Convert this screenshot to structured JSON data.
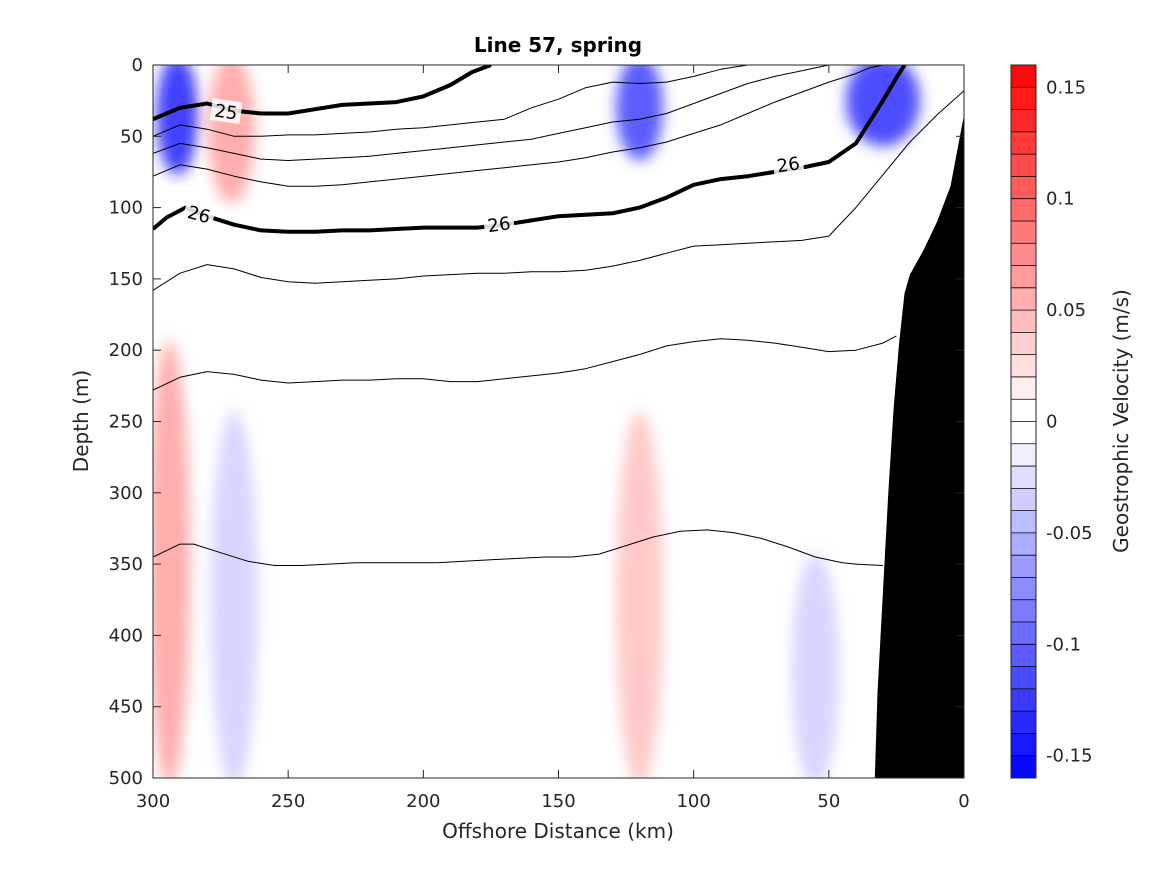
{
  "chart_data": {
    "type": "contour",
    "title": "Line 57, spring",
    "xlabel": "Offshore Distance (km)",
    "ylabel": "Depth (m)",
    "x_reversed": true,
    "y_reversed": true,
    "xlim": [
      0,
      300
    ],
    "ylim": [
      0,
      500
    ],
    "x_ticks": [
      "300",
      "250",
      "200",
      "150",
      "100",
      "50",
      "0"
    ],
    "x_tick_values": [
      300,
      250,
      200,
      150,
      100,
      50,
      0
    ],
    "y_ticks": [
      "0",
      "50",
      "100",
      "150",
      "200",
      "250",
      "300",
      "350",
      "400",
      "450",
      "500"
    ],
    "y_tick_values": [
      0,
      50,
      100,
      150,
      200,
      250,
      300,
      350,
      400,
      450,
      500
    ],
    "colorbar": {
      "label": "Geostrophic Velocity (m/s)",
      "range": [
        -0.16,
        0.16
      ],
      "levels": 32,
      "tick_labels": [
        "0.15",
        "0.1",
        "0.05",
        "0",
        "-0.05",
        "-0.1",
        "-0.15"
      ],
      "tick_values": [
        0.15,
        0.1,
        0.05,
        0,
        -0.05,
        -0.1,
        -0.15
      ],
      "positive_color": "#ff0000",
      "negative_color": "#0000ff"
    },
    "velocity_features": [
      {
        "x": [
          295,
          287
        ],
        "z": [
          0,
          70
        ],
        "v": -0.14
      },
      {
        "x": [
          276,
          266
        ],
        "z": [
          0,
          90
        ],
        "v": 0.06
      },
      {
        "x": [
          125,
          115
        ],
        "z": [
          0,
          60
        ],
        "v": -0.12
      },
      {
        "x": [
          40,
          20
        ],
        "z": [
          0,
          50
        ],
        "v": -0.13
      },
      {
        "x": [
          298,
          290
        ],
        "z": [
          200,
          500
        ],
        "v": 0.06
      },
      {
        "x": [
          275,
          265
        ],
        "z": [
          250,
          500
        ],
        "v": -0.03
      },
      {
        "x": [
          125,
          115
        ],
        "z": [
          250,
          500
        ],
        "v": 0.04
      },
      {
        "x": [
          60,
          50
        ],
        "z": [
          350,
          500
        ],
        "v": -0.03
      }
    ],
    "density_contours": [
      {
        "label": "25",
        "bold": true,
        "x": [
          300,
          290,
          280,
          270,
          260,
          250,
          240,
          230,
          220,
          210,
          200,
          190,
          182,
          175
        ],
        "z": [
          38,
          30,
          27,
          32,
          34,
          34,
          31,
          28,
          27,
          26,
          22,
          14,
          5,
          0
        ]
      },
      {
        "label": "",
        "bold": false,
        "x": [
          300,
          290,
          280,
          270,
          260,
          250,
          240,
          230,
          220,
          210,
          200,
          190,
          180,
          170,
          160,
          150,
          140,
          130,
          120,
          110,
          100,
          90,
          80,
          70,
          60,
          50
        ],
        "z": [
          50,
          42,
          45,
          50,
          50,
          49,
          49,
          48,
          47,
          45,
          44,
          42,
          40,
          38,
          30,
          24,
          16,
          12,
          13,
          12,
          8,
          3,
          0,
          0,
          0,
          0
        ]
      },
      {
        "label": "",
        "bold": false,
        "x": [
          300,
          290,
          280,
          270,
          260,
          250,
          240,
          230,
          220,
          210,
          200,
          190,
          180,
          170,
          160,
          150,
          140,
          130,
          120,
          110,
          100,
          90,
          80,
          70,
          60,
          50,
          45,
          40
        ],
        "z": [
          62,
          55,
          58,
          62,
          66,
          67,
          66,
          65,
          64,
          62,
          60,
          58,
          56,
          54,
          52,
          48,
          44,
          40,
          38,
          34,
          27,
          20,
          13,
          8,
          4,
          0,
          0,
          0
        ]
      },
      {
        "label": "",
        "bold": false,
        "x": [
          300,
          290,
          280,
          270,
          260,
          250,
          240,
          230,
          220,
          210,
          200,
          190,
          180,
          170,
          160,
          150,
          140,
          130,
          120,
          110,
          100,
          90,
          80,
          70,
          60,
          50,
          40,
          35,
          30
        ],
        "z": [
          78,
          70,
          73,
          78,
          82,
          85,
          85,
          84,
          82,
          80,
          78,
          76,
          74,
          72,
          70,
          68,
          65,
          61,
          58,
          54,
          48,
          42,
          34,
          26,
          19,
          12,
          6,
          2,
          0
        ]
      },
      {
        "label": "26",
        "bold": true,
        "x": [
          300,
          295,
          288,
          280,
          270,
          260,
          250,
          240,
          230,
          220,
          210,
          200,
          190,
          180,
          170,
          160,
          150,
          140,
          130,
          120,
          110,
          100,
          90,
          80,
          70,
          60,
          50,
          40,
          30,
          25,
          22
        ],
        "z": [
          115,
          107,
          100,
          106,
          112,
          116,
          117,
          117,
          116,
          116,
          115,
          114,
          114,
          114,
          112,
          109,
          106,
          105,
          104,
          100,
          93,
          84,
          80,
          78,
          75,
          72,
          68,
          55,
          25,
          9,
          0
        ]
      },
      {
        "label": "",
        "bold": false,
        "x": [
          300,
          290,
          280,
          270,
          260,
          250,
          240,
          230,
          220,
          210,
          200,
          190,
          180,
          170,
          160,
          150,
          140,
          130,
          120,
          110,
          100,
          90,
          80,
          70,
          60,
          50,
          40,
          30,
          20,
          10,
          0
        ],
        "z": [
          158,
          146,
          140,
          143,
          149,
          152,
          153,
          152,
          151,
          150,
          148,
          147,
          146,
          146,
          145,
          145,
          144,
          141,
          137,
          132,
          127,
          126,
          125,
          124,
          123,
          120,
          100,
          77,
          54,
          35,
          18
        ]
      },
      {
        "label": "",
        "bold": false,
        "x": [
          300,
          290,
          280,
          270,
          260,
          250,
          240,
          230,
          220,
          210,
          200,
          190,
          180,
          170,
          160,
          150,
          140,
          130,
          120,
          110,
          100,
          90,
          80,
          70,
          60,
          50,
          40,
          30,
          25
        ],
        "z": [
          228,
          219,
          215,
          217,
          221,
          223,
          222,
          221,
          221,
          220,
          220,
          222,
          222,
          220,
          218,
          216,
          213,
          208,
          203,
          197,
          194,
          192,
          193,
          195,
          198,
          201,
          200,
          195,
          190
        ]
      },
      {
        "label": "",
        "bold": false,
        "x": [
          300,
          290,
          285,
          275,
          265,
          255,
          245,
          235,
          225,
          215,
          205,
          195,
          185,
          175,
          165,
          155,
          145,
          135,
          125,
          115,
          105,
          95,
          85,
          75,
          65,
          55,
          45,
          40,
          30
        ],
        "z": [
          345,
          336,
          336,
          342,
          348,
          351,
          351,
          350,
          349,
          349,
          349,
          349,
          348,
          347,
          346,
          345,
          345,
          343,
          337,
          331,
          327,
          326,
          328,
          332,
          338,
          345,
          349,
          350,
          351
        ]
      }
    ],
    "contour_labels": [
      {
        "text": "25",
        "x": 273,
        "z": 33,
        "angle": 8
      },
      {
        "text": "26",
        "x": 283,
        "z": 105,
        "angle": 15
      },
      {
        "text": "26",
        "x": 172,
        "z": 112,
        "angle": -8
      },
      {
        "text": "26",
        "x": 65,
        "z": 70,
        "angle": -8
      }
    ],
    "bathymetry_mask": {
      "x": [
        33,
        32,
        30,
        28,
        26,
        24,
        22,
        20,
        15,
        10,
        5,
        2,
        0
      ],
      "z": [
        500,
        440,
        370,
        300,
        240,
        195,
        160,
        147,
        130,
        110,
        85,
        55,
        35
      ],
      "color": "#000000"
    }
  }
}
